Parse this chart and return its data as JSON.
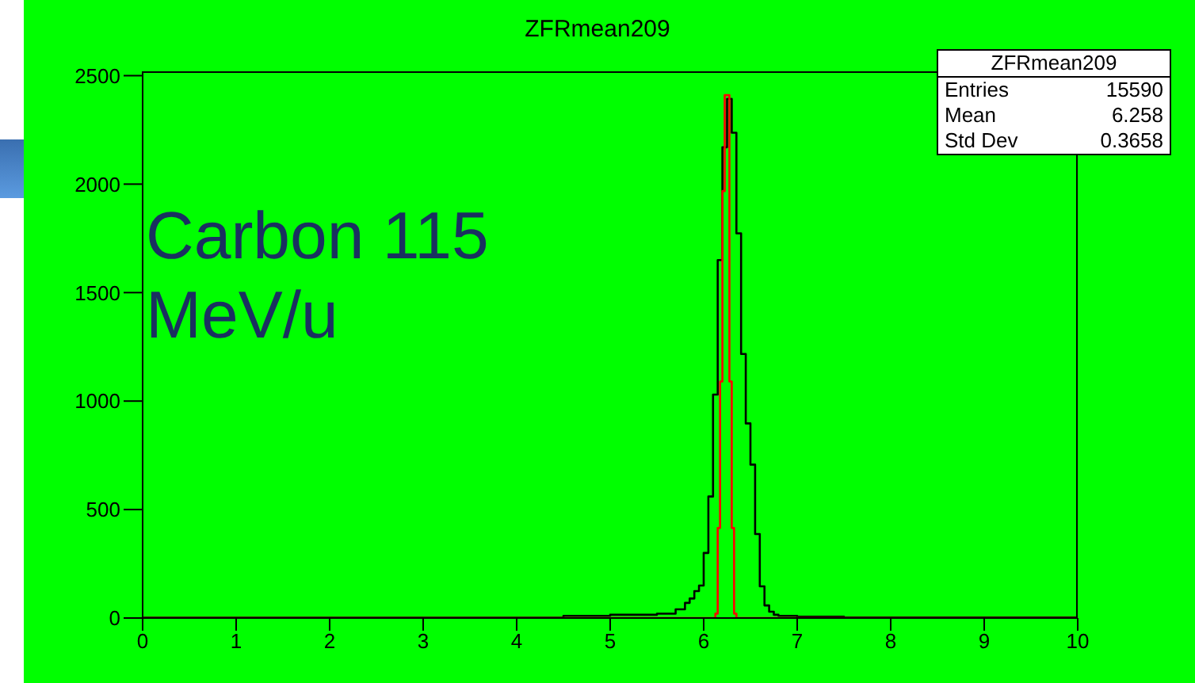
{
  "chart_data": {
    "type": "histogram",
    "title": "ZFRmean209",
    "bins": [
      0,
      4.5,
      5.0,
      5.5,
      5.7,
      5.8,
      5.85,
      5.9,
      5.95,
      6.0,
      6.05,
      6.1,
      6.125,
      6.15,
      6.175,
      6.2,
      6.225,
      6.25,
      6.275,
      6.3,
      6.325,
      6.35,
      6.4,
      6.45,
      6.5,
      6.55,
      6.6,
      6.65,
      6.7,
      6.75,
      6.8,
      7.0,
      7.5,
      10
    ],
    "series": [
      {
        "color": "#000000",
        "values": [
          2,
          10,
          15,
          20,
          40,
          70,
          90,
          124,
          150,
          300,
          560,
          1030,
          1030,
          1650,
          1650,
          2170,
          2170,
          2393,
          2393,
          2237,
          2237,
          1773,
          1217,
          897,
          707,
          387,
          146,
          58,
          29,
          15,
          10,
          6,
          3
        ]
      },
      {
        "color": "#ff0000",
        "values": [
          0,
          0,
          0,
          0,
          0,
          0,
          0,
          0,
          0,
          0,
          0,
          0,
          20,
          415,
          1090,
          1968,
          2410,
          2410,
          1090,
          415,
          20,
          0,
          0,
          0,
          0,
          0,
          0,
          0,
          0,
          0,
          0,
          0,
          0
        ]
      }
    ],
    "xlim": [
      0,
      10
    ],
    "xticks": [
      0,
      1,
      2,
      3,
      4,
      5,
      6,
      7,
      8,
      9,
      10
    ],
    "ylim": [
      0,
      2520
    ],
    "yticks": [
      0,
      500,
      1000,
      1500,
      2000,
      2500
    ],
    "grid": false,
    "legend": false,
    "annotations": [
      "Carbon 115 MeV/u",
      "ZFRmean209",
      "Entries",
      "15590",
      "Mean",
      "6.258",
      "Std Dev",
      "0.3658"
    ]
  }
}
